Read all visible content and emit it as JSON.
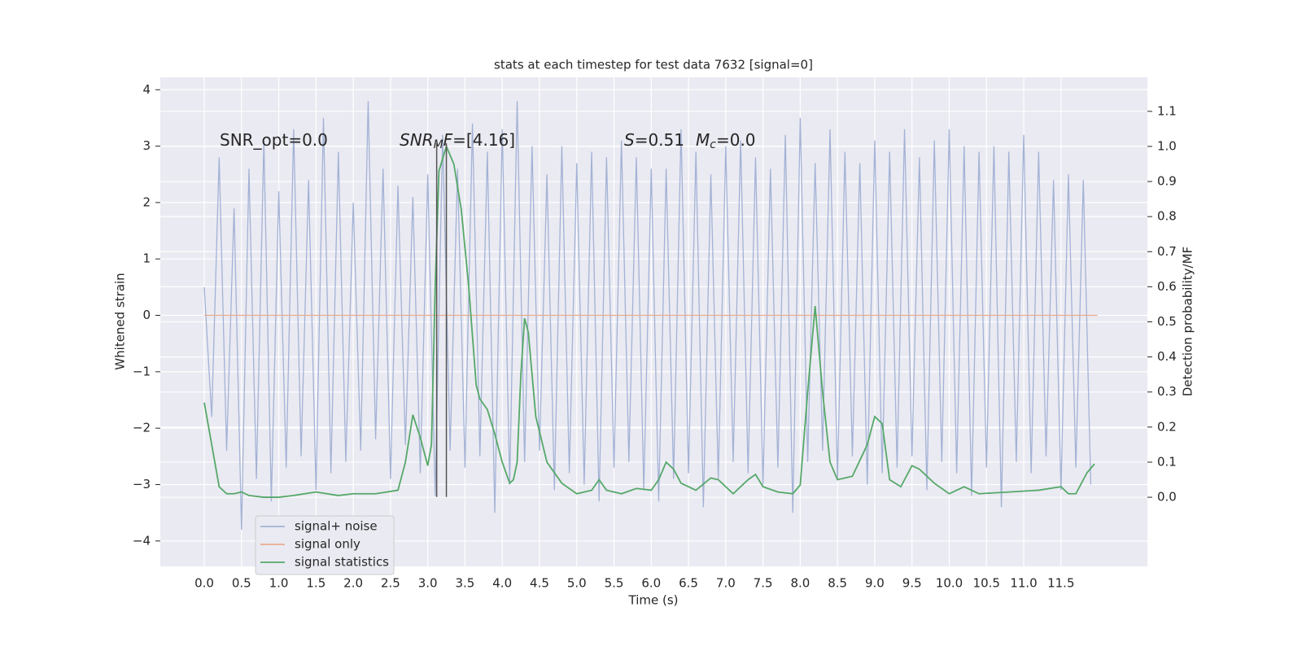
{
  "chart_data": {
    "type": "line",
    "title": "stats at each timestep for test data 7632 [signal=0]",
    "x_label": "Time (s)",
    "y_label": "Whitened strain",
    "y2_label": "Detection probability/MF",
    "grid": true,
    "legend_position": "lower left",
    "xlim": [
      -0.59,
      12.66
    ],
    "xticks": [
      {
        "value": 0,
        "label": "0.0"
      },
      0.5,
      {
        "value": 1,
        "label": "1.0"
      },
      1.5,
      {
        "value": 2,
        "label": "2.0"
      },
      2.5,
      {
        "value": 3,
        "label": "3.0"
      },
      3.5,
      {
        "value": 4,
        "label": "4.0"
      },
      4.5,
      {
        "value": 5,
        "label": "5.0"
      },
      5.5,
      {
        "value": 6,
        "label": "6.0"
      },
      6.5,
      {
        "value": 7,
        "label": "7.0"
      },
      7.5,
      {
        "value": 8,
        "label": "8.0"
      },
      8.5,
      {
        "value": 9,
        "label": "9.0"
      },
      9.5,
      {
        "value": 10,
        "label": "10.0"
      },
      10.5,
      {
        "value": 11,
        "label": "11.0"
      },
      11.5
    ],
    "ylim": [
      -4.45,
      4.22
    ],
    "yticks": [
      {
        "value": -4,
        "label": "−4"
      },
      {
        "value": -3,
        "label": "−3"
      },
      {
        "value": -2,
        "label": "−2"
      },
      {
        "value": -1,
        "label": "−1"
      },
      0,
      1,
      2,
      3,
      4
    ],
    "y2lim": [
      -0.197,
      1.197
    ],
    "y2ticks": [
      {
        "value": 0,
        "label": "0.0"
      },
      0.1,
      0.2,
      0.3,
      0.4,
      0.5,
      0.6,
      0.7,
      0.8,
      0.9,
      {
        "value": 1,
        "label": "1.0"
      },
      1.1
    ],
    "annotations": [
      [
        {
          "text": "SNR_opt=0.0"
        }
      ],
      [
        {
          "text": "SNR",
          "italic": true
        },
        {
          "text": "M",
          "italic": true,
          "sub": true
        },
        {
          "text": "F",
          "italic": true
        },
        {
          "text": "=[4.16]"
        }
      ],
      [
        {
          "text": "S",
          "italic": true
        },
        {
          "text": "=0.51"
        },
        {
          "text": "M",
          "italic": true
        },
        {
          "text": "c",
          "italic": true,
          "sub": true
        },
        {
          "text": "=0.0"
        }
      ]
    ],
    "vlines_color": "#555555",
    "vlines": [
      {
        "x": 3.12,
        "ymin": -3.22,
        "ymax": 3.05
      },
      {
        "x": 3.25,
        "ymin": -3.22,
        "ymax": 3.05
      }
    ],
    "series": [
      {
        "name": "signal+ noise",
        "color": "#a3b2d5",
        "x": [
          0,
          0.1,
          0.2,
          0.3,
          0.4,
          0.5,
          0.6,
          0.7,
          0.8,
          0.9,
          1,
          1.1,
          1.2,
          1.3,
          1.4,
          1.5,
          1.6,
          1.7,
          1.8,
          1.9,
          2,
          2.1,
          2.2,
          2.3,
          2.4,
          2.5,
          2.6,
          2.7,
          2.8,
          2.9,
          3,
          3.1,
          3.2,
          3.3,
          3.4,
          3.5,
          3.6,
          3.7,
          3.8,
          3.9,
          4,
          4.1,
          4.2,
          4.3,
          4.4,
          4.5,
          4.6,
          4.7,
          4.8,
          4.9,
          5,
          5.1,
          5.2,
          5.3,
          5.4,
          5.5,
          5.6,
          5.7,
          5.8,
          5.9,
          6,
          6.1,
          6.2,
          6.3,
          6.4,
          6.5,
          6.6,
          6.7,
          6.8,
          6.9,
          7,
          7.1,
          7.2,
          7.3,
          7.4,
          7.5,
          7.6,
          7.7,
          7.8,
          7.9,
          8,
          8.1,
          8.2,
          8.3,
          8.4,
          8.5,
          8.6,
          8.7,
          8.8,
          8.9,
          9,
          9.1,
          9.2,
          9.3,
          9.4,
          9.5,
          9.6,
          9.7,
          9.8,
          9.9,
          10,
          10.1,
          10.2,
          10.3,
          10.4,
          10.5,
          10.6,
          10.7,
          10.8,
          10.9,
          11,
          11.1,
          11.2,
          11.3,
          11.4,
          11.5,
          11.6,
          11.7,
          11.8,
          11.9
        ],
        "values": [
          0.5,
          -1.8,
          2.8,
          -2.4,
          1.9,
          -3.8,
          2.6,
          -2.9,
          3.1,
          -3.3,
          2.2,
          -2.7,
          3.3,
          -2.5,
          2.4,
          -3.1,
          3.5,
          -2.8,
          2.9,
          -2.6,
          2.0,
          -2.4,
          3.8,
          -2.2,
          2.6,
          -2.9,
          2.3,
          -2.3,
          2.1,
          -2.8,
          2.5,
          -3.2,
          3.2,
          -2.4,
          2.6,
          -2.7,
          3.4,
          -2.5,
          2.9,
          -3.5,
          3.3,
          -3.0,
          3.8,
          -2.6,
          3.0,
          -2.4,
          2.5,
          -3.1,
          3.0,
          -2.8,
          2.7,
          -3.0,
          2.9,
          -3.3,
          2.8,
          -2.7,
          3.1,
          -2.6,
          2.8,
          -3.1,
          2.6,
          -3.3,
          2.6,
          -2.9,
          3.3,
          -2.8,
          2.9,
          -3.4,
          2.5,
          -2.9,
          3.0,
          -2.6,
          3.1,
          -2.8,
          2.8,
          -3.0,
          2.6,
          -2.7,
          3.2,
          -3.5,
          3.5,
          -2.6,
          2.7,
          -2.4,
          3.3,
          -2.9,
          2.9,
          -2.5,
          2.7,
          -3.0,
          3.1,
          -2.8,
          2.9,
          -2.7,
          3.3,
          -2.5,
          2.8,
          -3.1,
          3.1,
          -2.6,
          3.3,
          -2.8,
          3.0,
          -3.2,
          2.9,
          -2.7,
          3.0,
          -3.4,
          2.9,
          -2.6,
          3.2,
          -2.8,
          2.9,
          -2.5,
          2.4,
          -3.1,
          2.5,
          -2.7,
          2.4,
          -3.0
        ]
      },
      {
        "name": "signal only",
        "color": "#e8ab8d",
        "x": [
          0,
          11.99
        ],
        "values": [
          0,
          0
        ]
      },
      {
        "name": "signal statistics",
        "color": "#55a868",
        "axis": "y2",
        "x": [
          0,
          0.1,
          0.2,
          0.3,
          0.4,
          0.5,
          0.6,
          0.8,
          1.0,
          1.2,
          1.5,
          1.8,
          2.0,
          2.3,
          2.6,
          2.7,
          2.8,
          2.9,
          3.0,
          3.05,
          3.1,
          3.15,
          3.25,
          3.35,
          3.45,
          3.55,
          3.65,
          3.7,
          3.8,
          3.9,
          4.0,
          4.1,
          4.15,
          4.2,
          4.25,
          4.3,
          4.35,
          4.45,
          4.6,
          4.8,
          5.0,
          5.2,
          5.3,
          5.4,
          5.6,
          5.8,
          6.0,
          6.1,
          6.2,
          6.3,
          6.4,
          6.6,
          6.8,
          6.9,
          7.1,
          7.3,
          7.4,
          7.5,
          7.7,
          7.9,
          8.0,
          8.1,
          8.2,
          8.3,
          8.4,
          8.5,
          8.7,
          8.9,
          9.0,
          9.1,
          9.2,
          9.35,
          9.5,
          9.6,
          9.8,
          10.0,
          10.2,
          10.4,
          10.8,
          11.2,
          11.5,
          11.6,
          11.7,
          11.85,
          11.95
        ],
        "values": [
          0.27,
          0.15,
          0.03,
          0.01,
          0.01,
          0.015,
          0.005,
          0,
          0,
          0.005,
          0.015,
          0.005,
          0.01,
          0.01,
          0.02,
          0.1,
          0.235,
          0.17,
          0.09,
          0.15,
          0.6,
          0.93,
          1.0,
          0.95,
          0.82,
          0.6,
          0.32,
          0.28,
          0.25,
          0.18,
          0.1,
          0.04,
          0.05,
          0.1,
          0.35,
          0.51,
          0.47,
          0.23,
          0.1,
          0.04,
          0.01,
          0.02,
          0.05,
          0.02,
          0.01,
          0.025,
          0.02,
          0.05,
          0.1,
          0.08,
          0.04,
          0.02,
          0.055,
          0.05,
          0.01,
          0.05,
          0.065,
          0.03,
          0.015,
          0.01,
          0.035,
          0.3,
          0.545,
          0.3,
          0.1,
          0.05,
          0.06,
          0.15,
          0.23,
          0.21,
          0.05,
          0.03,
          0.09,
          0.08,
          0.04,
          0.01,
          0.03,
          0.01,
          0.015,
          0.02,
          0.03,
          0.01,
          0.01,
          0.07,
          0.095
        ]
      }
    ]
  }
}
